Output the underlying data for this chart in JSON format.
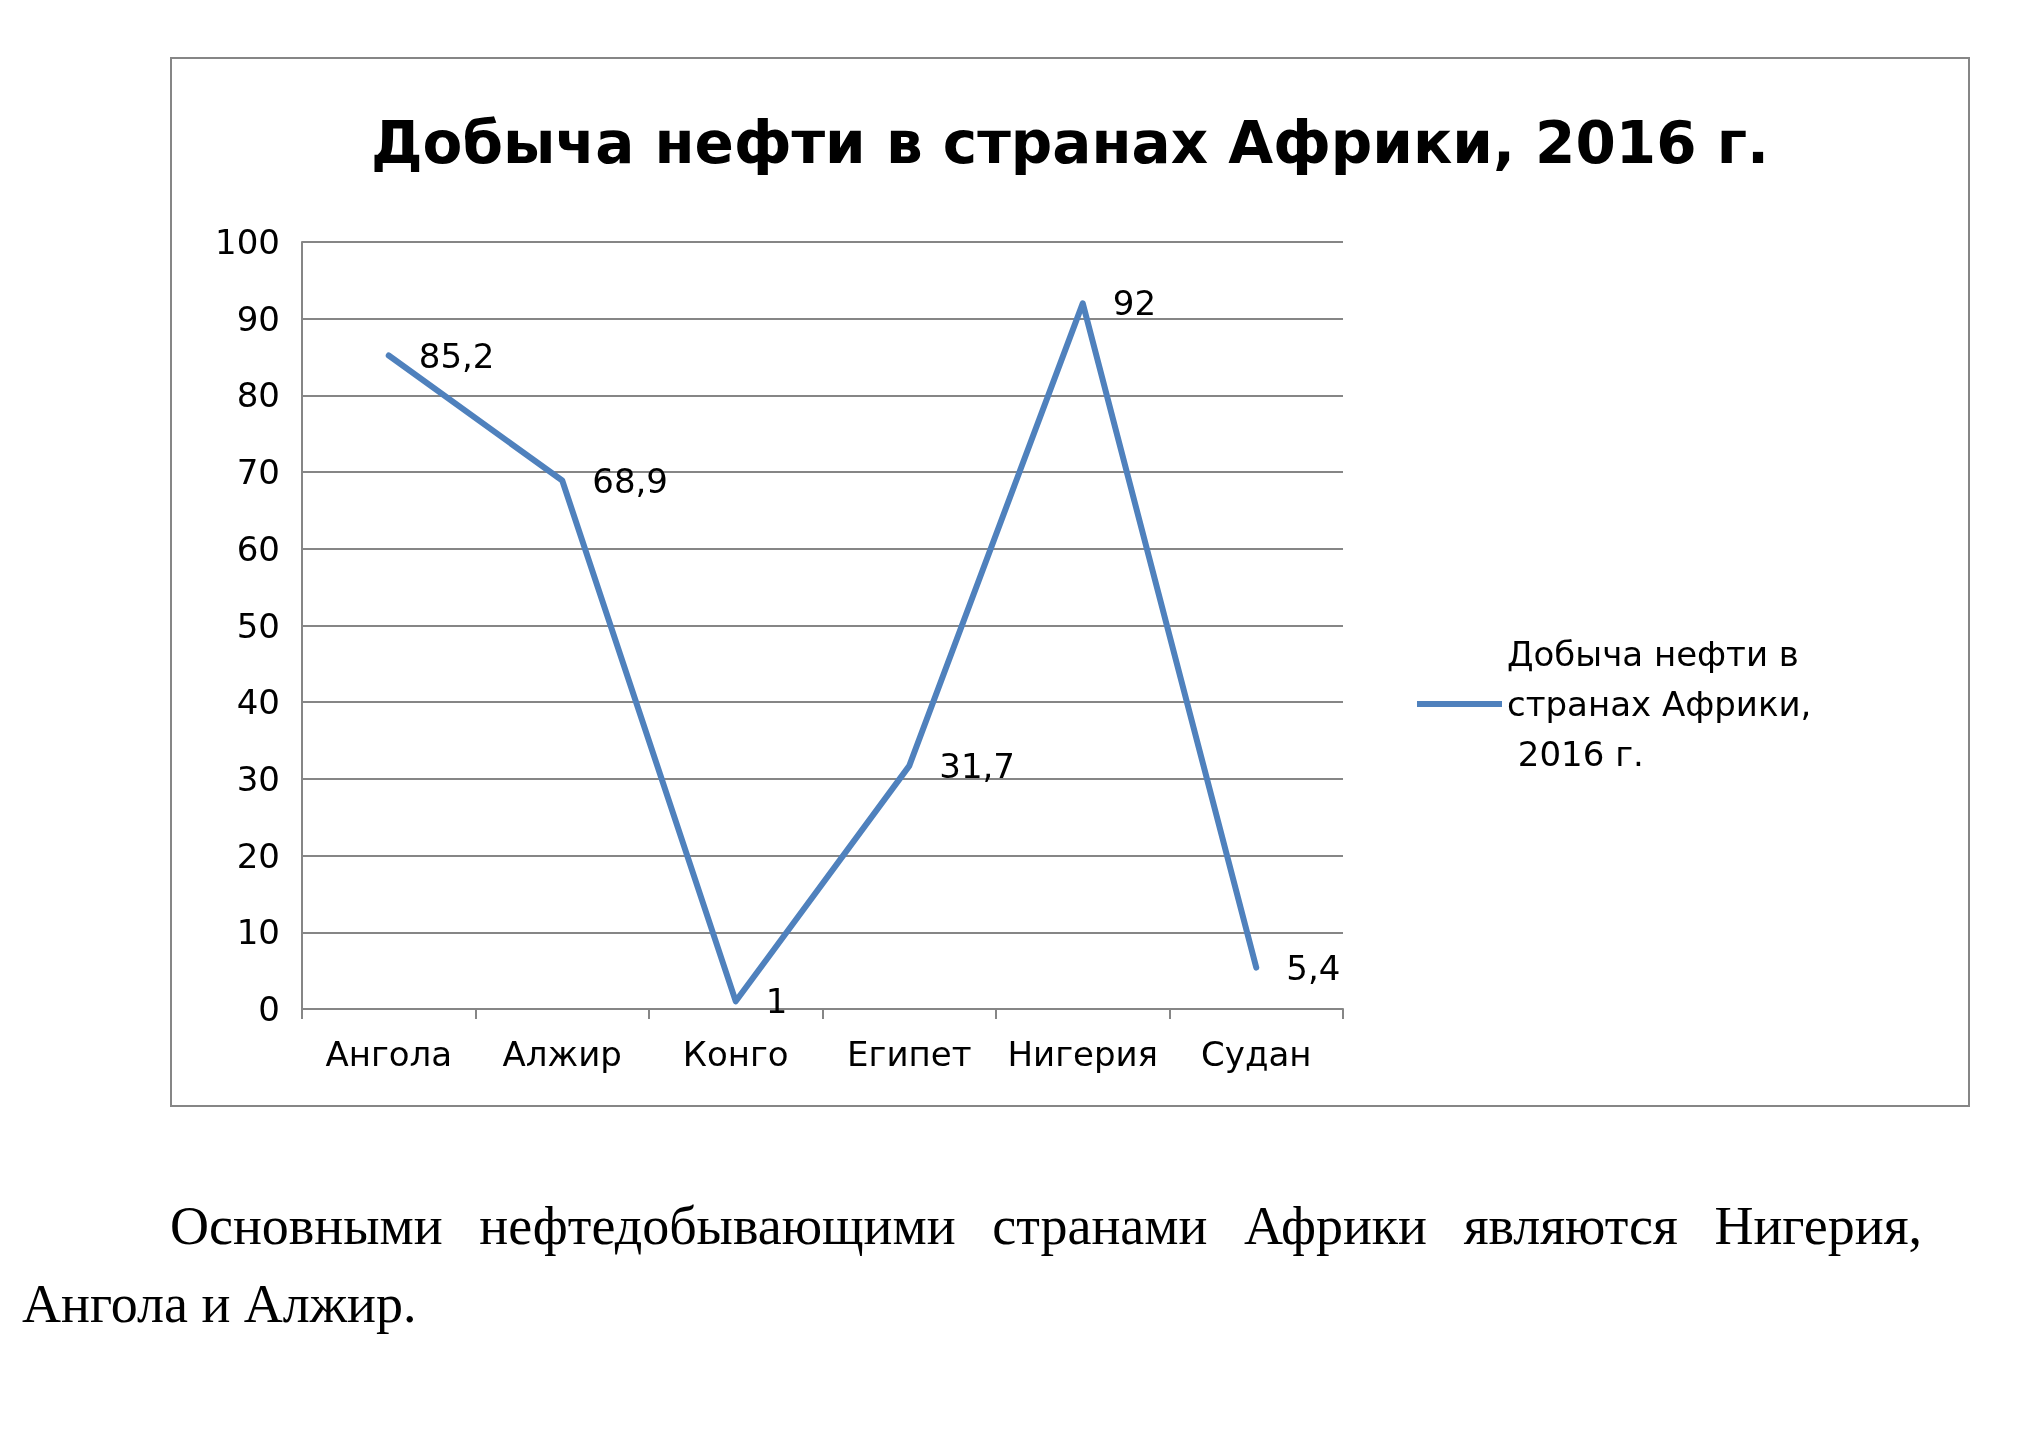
{
  "chart_data": {
    "type": "line",
    "title": "Добыча нефти в странах Африки, 2016 г.",
    "categories": [
      "Ангола",
      "Алжир",
      "Конго",
      "Египет",
      "Нигерия",
      "Судан"
    ],
    "series": [
      {
        "name": "Добыча нефти в странах Африки, 2016 г.",
        "color": "#4f81bd",
        "values": [
          85.2,
          68.9,
          1,
          31.7,
          92,
          5.4
        ],
        "value_labels": [
          "85,2",
          "68,9",
          "1",
          "31,7",
          "92",
          "5,4"
        ]
      }
    ],
    "ylim": [
      0,
      100
    ],
    "yticks": [
      0,
      10,
      20,
      30,
      40,
      50,
      60,
      70,
      80,
      90,
      100
    ],
    "grid": "y",
    "legend": "right",
    "marker": "none",
    "line_style": "solid",
    "annotations": [
      "Основными нефтедобывающими странами Африки являются Нигерия, Ангола и Алжир."
    ]
  }
}
